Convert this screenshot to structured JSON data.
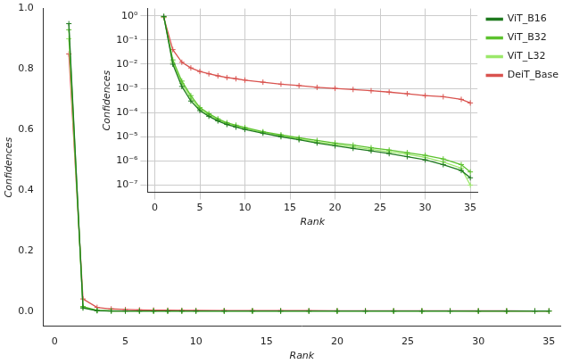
{
  "chart_data": [
    {
      "type": "line",
      "x_label": "Rank",
      "y_label": "Confidences",
      "x": [
        1,
        2,
        3,
        4,
        5,
        6,
        7,
        8,
        9,
        10,
        12,
        14,
        16,
        18,
        20,
        22,
        24,
        26,
        28,
        30,
        32,
        34,
        35
      ],
      "xlim": [
        -0.8,
        35.8
      ],
      "xticks": [
        0,
        5,
        10,
        15,
        20,
        25,
        30,
        35
      ],
      "ylim": [
        -0.05,
        1.0
      ],
      "yticks": [
        {
          "value": 0,
          "label": "0.0"
        },
        {
          "value": 0.2,
          "label": "0.2"
        },
        {
          "value": 0.4,
          "label": "0.4"
        },
        {
          "value": 0.6,
          "label": "0.6"
        },
        {
          "value": 0.8,
          "label": "0.8"
        },
        {
          "value": 1.0,
          "label": "1.0"
        }
      ],
      "grid": false,
      "series": [
        {
          "name": "ViT_B16",
          "color": "#1f7a1f",
          "marker": "cross",
          "line_style": "solid",
          "values": [
            0.95,
            0.01,
            0.0012,
            0.0003,
            0.00012,
            7e-05,
            4.5e-05,
            3.2e-05,
            2.5e-05,
            2e-05,
            1.4e-05,
            1e-05,
            7.5e-06,
            5.5e-06,
            4.2e-06,
            3.3e-06,
            2.6e-06,
            2e-06,
            1.5e-06,
            1.1e-06,
            7e-07,
            4e-07,
            2e-07
          ]
        },
        {
          "name": "ViT_B32",
          "color": "#5cc22e",
          "marker": "cross",
          "line_style": "solid",
          "values": [
            0.93,
            0.015,
            0.002,
            0.0005,
            0.00016,
            9e-05,
            5.5e-05,
            3.8e-05,
            3e-05,
            2.4e-05,
            1.6e-05,
            1.2e-05,
            9e-06,
            7e-06,
            5.5e-06,
            4.5e-06,
            3.5e-06,
            2.8e-06,
            2.2e-06,
            1.7e-06,
            1.2e-06,
            7e-07,
            3.5e-07
          ]
        },
        {
          "name": "ViT_L32",
          "color": "#9be86a",
          "marker": "cross",
          "line_style": "solid",
          "values": [
            0.9,
            0.012,
            0.0016,
            0.0004,
            0.00014,
            8e-05,
            5e-05,
            3.5e-05,
            2.7e-05,
            2.2e-05,
            1.5e-05,
            1.1e-05,
            8e-06,
            6e-06,
            4.8e-06,
            3.8e-06,
            3e-06,
            2.4e-06,
            1.9e-06,
            1.4e-06,
            9e-07,
            5e-07,
            1e-07
          ]
        },
        {
          "name": "DeiT_Base",
          "color": "#d9534f",
          "marker": "cross",
          "line_style": "solid",
          "values": [
            0.85,
            0.04,
            0.012,
            0.007,
            0.005,
            0.004,
            0.0033,
            0.0028,
            0.0025,
            0.0022,
            0.0018,
            0.0015,
            0.0013,
            0.0011,
            0.001,
            0.0009,
            0.0008,
            0.0007,
            0.0006,
            0.0005,
            0.00045,
            0.00035,
            0.00025
          ]
        }
      ]
    },
    {
      "type": "line",
      "x_label": "Rank",
      "y_label": "Confidences",
      "x": [
        1,
        2,
        3,
        4,
        5,
        6,
        7,
        8,
        9,
        10,
        12,
        14,
        16,
        18,
        20,
        22,
        24,
        26,
        28,
        30,
        32,
        34,
        35
      ],
      "xlim": [
        -0.8,
        35.8
      ],
      "xticks": [
        0,
        5,
        10,
        15,
        20,
        25,
        30,
        35
      ],
      "log": "y",
      "ylim": [
        5e-08,
        2
      ],
      "yticks": [
        {
          "value": 1,
          "label": "10⁰"
        },
        {
          "value": 0.1,
          "label": "10⁻¹"
        },
        {
          "value": 0.01,
          "label": "10⁻²"
        },
        {
          "value": 0.001,
          "label": "10⁻³"
        },
        {
          "value": 0.0001,
          "label": "10⁻⁴"
        },
        {
          "value": 1e-05,
          "label": "10⁻⁵"
        },
        {
          "value": 1e-06,
          "label": "10⁻⁶"
        },
        {
          "value": 1e-07,
          "label": "10⁻⁷"
        }
      ],
      "grid": true,
      "legend": "right",
      "series": [
        {
          "name": "ViT_B16",
          "color": "#1f7a1f",
          "marker": "cross",
          "line_style": "solid",
          "values": [
            0.95,
            0.01,
            0.0012,
            0.0003,
            0.00012,
            7e-05,
            4.5e-05,
            3.2e-05,
            2.5e-05,
            2e-05,
            1.4e-05,
            1e-05,
            7.5e-06,
            5.5e-06,
            4.2e-06,
            3.3e-06,
            2.6e-06,
            2e-06,
            1.5e-06,
            1.1e-06,
            7e-07,
            4e-07,
            2e-07
          ]
        },
        {
          "name": "ViT_B32",
          "color": "#5cc22e",
          "marker": "cross",
          "line_style": "solid",
          "values": [
            0.93,
            0.015,
            0.002,
            0.0005,
            0.00016,
            9e-05,
            5.5e-05,
            3.8e-05,
            3e-05,
            2.4e-05,
            1.6e-05,
            1.2e-05,
            9e-06,
            7e-06,
            5.5e-06,
            4.5e-06,
            3.5e-06,
            2.8e-06,
            2.2e-06,
            1.7e-06,
            1.2e-06,
            7e-07,
            3.5e-07
          ]
        },
        {
          "name": "ViT_L32",
          "color": "#9be86a",
          "marker": "cross",
          "line_style": "solid",
          "values": [
            0.9,
            0.012,
            0.0016,
            0.0004,
            0.00014,
            8e-05,
            5e-05,
            3.5e-05,
            2.7e-05,
            2.2e-05,
            1.5e-05,
            1.1e-05,
            8e-06,
            6e-06,
            4.8e-06,
            3.8e-06,
            3e-06,
            2.4e-06,
            1.9e-06,
            1.4e-06,
            9e-07,
            5e-07,
            1e-07
          ]
        },
        {
          "name": "DeiT_Base",
          "color": "#d9534f",
          "marker": "cross",
          "line_style": "solid",
          "values": [
            0.85,
            0.04,
            0.012,
            0.007,
            0.005,
            0.004,
            0.0033,
            0.0028,
            0.0025,
            0.0022,
            0.0018,
            0.0015,
            0.0013,
            0.0011,
            0.001,
            0.0009,
            0.0008,
            0.0007,
            0.0006,
            0.0005,
            0.00045,
            0.00035,
            0.00025
          ]
        }
      ]
    }
  ]
}
